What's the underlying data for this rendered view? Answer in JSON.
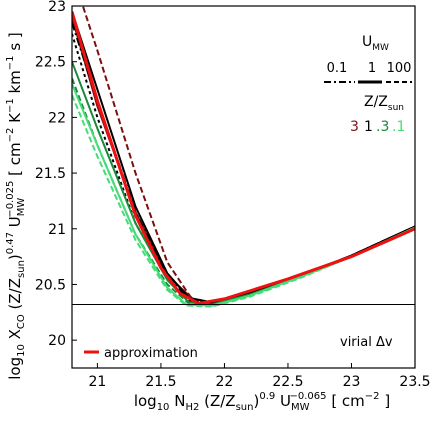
{
  "chart_data": {
    "type": "line",
    "xlabel": {
      "main": "log",
      "sub10": "10",
      "n": "N",
      "nsub": "H2",
      "z": "(Z/Z",
      "zsub": "sun",
      "zclose": ")",
      "zexp": "0.9",
      "u": "U",
      "usub": "MW",
      "uexp": "−0.065",
      "units": "[ cm",
      "unitexp": "−2",
      "unitclose": "]"
    },
    "ylabel": {
      "main": "log",
      "sub10": "10",
      "x": "X",
      "xsub": "CO",
      "z": "(Z/Z",
      "zsub": "sun",
      "zclose": ")",
      "zexp": "0.47",
      "u": "U",
      "usub": "MW",
      "uexp": "−0.025",
      "units": "[ cm",
      "e1": "−2",
      "k": "K",
      "e2": "−1",
      "km": "km",
      "e3": "−1",
      "s": "s ]"
    },
    "xlim": [
      20.8,
      23.5
    ],
    "ylim": [
      19.75,
      23.0
    ],
    "xticks": [
      21,
      21.5,
      22,
      22.5,
      23,
      23.5
    ],
    "xtick_labels": [
      "21",
      "21.5",
      "22",
      "22.5",
      "23",
      "23.5"
    ],
    "yticks": [
      20,
      20.5,
      21,
      21.5,
      22,
      22.5,
      23
    ],
    "ytick_labels": [
      "20",
      "20.5",
      "21",
      "21.5",
      "22",
      "22.5",
      "23"
    ],
    "grid": false,
    "hline": 20.32,
    "legend_U": {
      "title_main": "U",
      "title_sub": "MW",
      "values": [
        "0.1",
        "1",
        "100"
      ]
    },
    "legend_Z": {
      "title_main": "Z/Z",
      "title_sub": "sun",
      "values": [
        "3",
        "1",
        ".3",
        ".1"
      ],
      "colors": [
        "#7a1010",
        "#000000",
        "#1a8a3a",
        "#44dd77"
      ]
    },
    "legend_approx": {
      "label": "approximation",
      "color": "#ee1111"
    },
    "annotation": "virial Δv",
    "series": [
      {
        "color": "#7a1010",
        "dash": "6,3",
        "x": [
          20.8,
          21.0,
          21.3,
          21.55,
          21.75,
          21.9,
          22.2,
          22.6,
          23.0,
          23.5
        ],
        "y": [
          23.3,
          22.6,
          21.5,
          20.7,
          20.36,
          20.33,
          20.42,
          20.58,
          20.76,
          21.02
        ]
      },
      {
        "color": "#7a1010",
        "dash": "",
        "x": [
          20.8,
          21.0,
          21.3,
          21.55,
          21.75,
          21.9,
          22.2,
          22.6,
          23.0,
          23.5
        ],
        "y": [
          22.9,
          22.1,
          21.15,
          20.58,
          20.37,
          20.34,
          20.42,
          20.58,
          20.76,
          21.02
        ]
      },
      {
        "color": "#000000",
        "dash": "",
        "x": [
          20.8,
          21.0,
          21.3,
          21.55,
          21.72,
          21.9,
          22.2,
          22.6,
          23.0,
          23.5
        ],
        "y": [
          22.95,
          22.25,
          21.2,
          20.6,
          20.38,
          20.34,
          20.42,
          20.58,
          20.76,
          21.02
        ]
      },
      {
        "color": "#000000",
        "dash": "3,3",
        "x": [
          20.8,
          21.0,
          21.3,
          21.55,
          21.72,
          21.9,
          22.2,
          22.6,
          23.0,
          23.5
        ],
        "y": [
          22.75,
          22.0,
          21.05,
          20.55,
          20.35,
          20.32,
          20.41,
          20.57,
          20.75,
          21.01
        ]
      },
      {
        "color": "#000000",
        "dash": "8,3,2,3",
        "x": [
          20.8,
          21.0,
          21.3,
          21.55,
          21.72,
          21.9,
          22.2,
          22.6,
          23.0,
          23.5
        ],
        "y": [
          22.85,
          22.15,
          21.15,
          20.58,
          20.36,
          20.33,
          20.42,
          20.58,
          20.76,
          21.02
        ]
      },
      {
        "color": "#1a8a3a",
        "dash": "6,3",
        "x": [
          20.8,
          21.0,
          21.3,
          21.55,
          21.72,
          21.9,
          22.2,
          22.6,
          23.0,
          23.5
        ],
        "y": [
          22.35,
          21.75,
          20.95,
          20.5,
          20.33,
          20.31,
          20.4,
          20.57,
          20.75,
          21.01
        ]
      },
      {
        "color": "#1a8a3a",
        "dash": "",
        "x": [
          20.8,
          21.0,
          21.3,
          21.55,
          21.72,
          21.9,
          22.2,
          22.6,
          23.0,
          23.5
        ],
        "y": [
          22.5,
          21.9,
          21.05,
          20.54,
          20.34,
          20.32,
          20.41,
          20.57,
          20.75,
          21.01
        ]
      },
      {
        "color": "#44dd77",
        "dash": "6,3",
        "x": [
          20.8,
          21.0,
          21.3,
          21.55,
          21.7,
          21.9,
          22.2,
          22.6,
          23.0,
          23.5
        ],
        "y": [
          22.2,
          21.65,
          20.9,
          20.45,
          20.31,
          20.3,
          20.39,
          20.56,
          20.75,
          21.01
        ]
      },
      {
        "color": "#44dd77",
        "dash": "",
        "x": [
          20.8,
          21.0,
          21.3,
          21.55,
          21.7,
          21.9,
          22.2,
          22.6,
          23.0,
          23.5
        ],
        "y": [
          22.3,
          21.75,
          20.95,
          20.47,
          20.32,
          20.31,
          20.4,
          20.57,
          20.75,
          21.01
        ]
      }
    ],
    "approximation": {
      "color": "#ee1111",
      "x": [
        20.8,
        21.0,
        21.3,
        21.5,
        21.65,
        21.8,
        22.0,
        22.5,
        23.0,
        23.5
      ],
      "y": [
        22.95,
        22.15,
        21.12,
        20.65,
        20.42,
        20.33,
        20.37,
        20.55,
        20.75,
        21.0
      ]
    }
  }
}
